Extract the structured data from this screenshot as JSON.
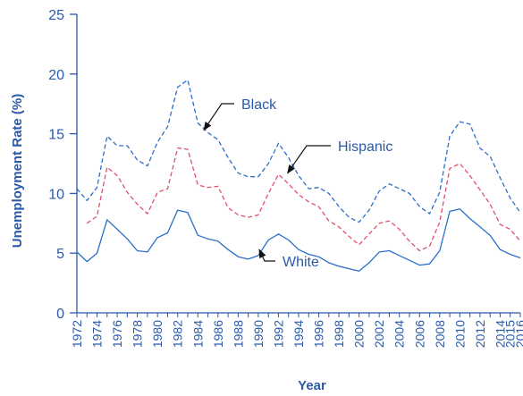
{
  "chart_data": {
    "type": "line",
    "title": "",
    "xlabel": "Year",
    "ylabel": "Unemployment Rate (%)",
    "ylim": [
      0,
      25
    ],
    "xlim": [
      1972,
      2016
    ],
    "yticks": [
      0,
      5,
      10,
      15,
      20,
      25
    ],
    "xticks": [
      "1972",
      "1974",
      "1976",
      "1978",
      "1980",
      "1982",
      "1984",
      "1986",
      "1988",
      "1990",
      "1992",
      "1994",
      "1996",
      "1998",
      "2000",
      "2002",
      "2004",
      "2006",
      "2008",
      "2010",
      "2012",
      "2014",
      "2015",
      "2016"
    ],
    "x": [
      1972,
      1973,
      1974,
      1975,
      1976,
      1977,
      1978,
      1979,
      1980,
      1981,
      1982,
      1983,
      1984,
      1985,
      1986,
      1987,
      1988,
      1989,
      1990,
      1991,
      1992,
      1993,
      1994,
      1995,
      1996,
      1997,
      1998,
      1999,
      2000,
      2001,
      2002,
      2003,
      2004,
      2005,
      2006,
      2007,
      2008,
      2009,
      2010,
      2011,
      2012,
      2013,
      2014,
      2015,
      2016
    ],
    "grid": false,
    "legend": "none",
    "series": [
      {
        "name": "Black",
        "style": "dashed",
        "color": "#2a6fc9",
        "values": [
          10.4,
          9.4,
          10.5,
          14.8,
          14.0,
          14.0,
          12.8,
          12.3,
          14.3,
          15.6,
          18.9,
          19.5,
          15.9,
          15.1,
          14.5,
          13.0,
          11.7,
          11.4,
          11.4,
          12.5,
          14.2,
          13.0,
          11.5,
          10.4,
          10.5,
          10.0,
          8.9,
          8.0,
          7.6,
          8.6,
          10.2,
          10.8,
          10.4,
          10.0,
          8.9,
          8.3,
          10.1,
          14.8,
          16.0,
          15.8,
          13.8,
          13.1,
          11.3,
          9.6,
          8.4
        ]
      },
      {
        "name": "Hispanic",
        "style": "dashed",
        "color": "#e0506a",
        "values": [
          null,
          7.5,
          8.1,
          12.2,
          11.5,
          10.1,
          9.1,
          8.3,
          10.1,
          10.4,
          13.8,
          13.7,
          10.7,
          10.5,
          10.6,
          8.8,
          8.2,
          8.0,
          8.2,
          10.0,
          11.6,
          10.8,
          9.9,
          9.3,
          8.9,
          7.7,
          7.2,
          6.4,
          5.7,
          6.6,
          7.5,
          7.7,
          7.0,
          6.0,
          5.2,
          5.6,
          7.6,
          12.1,
          12.5,
          11.5,
          10.3,
          9.1,
          7.4,
          7.0,
          6.0
        ]
      },
      {
        "name": "White",
        "style": "solid",
        "color": "#2a6fc9",
        "values": [
          5.1,
          4.3,
          5.0,
          7.8,
          7.0,
          6.2,
          5.2,
          5.1,
          6.3,
          6.7,
          8.6,
          8.4,
          6.5,
          6.2,
          6.0,
          5.3,
          4.7,
          4.5,
          4.8,
          6.1,
          6.6,
          6.1,
          5.3,
          4.9,
          4.7,
          4.2,
          3.9,
          3.7,
          3.5,
          4.2,
          5.1,
          5.2,
          4.8,
          4.4,
          4.0,
          4.1,
          5.2,
          8.5,
          8.7,
          7.9,
          7.2,
          6.5,
          5.3,
          4.9,
          4.6
        ]
      }
    ],
    "annotations": [
      {
        "label": "Black",
        "target_x": 1984.6,
        "target_y": 15.3
      },
      {
        "label": "Hispanic",
        "target_x": 1992.9,
        "target_y": 11.7
      },
      {
        "label": "White",
        "target_x": 1990.1,
        "target_y": 5.3
      }
    ],
    "colors": {
      "axis": "#2a5aa8",
      "text": "#2a5aa8",
      "blue_line": "#2a6fc9",
      "pink_line": "#e0506a"
    }
  }
}
